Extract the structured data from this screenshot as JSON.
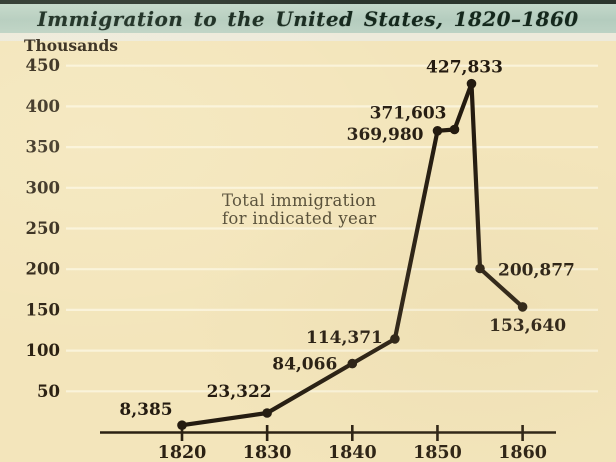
{
  "page": {
    "title": "Immigration to the United States, 1820–1860"
  },
  "chart_data": {
    "type": "line",
    "title": "Immigration to the United States, 1820–1860",
    "unit_label": "Thousands",
    "annotation_lines": [
      "Total immigration",
      "for indicated year"
    ],
    "xlabel": "",
    "ylabel": "Thousands",
    "x_ticks": [
      1820,
      1830,
      1840,
      1850,
      1860
    ],
    "y_ticks": [
      450,
      400,
      350,
      300,
      250,
      200,
      150,
      100,
      50
    ],
    "ylim": [
      0,
      450
    ],
    "xlim": [
      1810,
      1864
    ],
    "grid": true,
    "legend_position": "none",
    "series": [
      {
        "name": "Total immigration for indicated year",
        "points": [
          {
            "year": 1820,
            "value": 8385,
            "label": "8,385",
            "label_anchor": "middle",
            "label_dx": -36,
            "label_dy": -10
          },
          {
            "year": 1830,
            "value": 23322,
            "label": "23,322",
            "label_anchor": "middle",
            "label_dx": -28,
            "label_dy": -16
          },
          {
            "year": 1840,
            "value": 84066,
            "label": "84,066",
            "label_anchor": "end",
            "label_dx": -15,
            "label_dy": 6
          },
          {
            "year": 1845,
            "value": 114371,
            "label": "114,371",
            "label_anchor": "end",
            "label_dx": -12,
            "label_dy": 4
          },
          {
            "year": 1850,
            "value": 369980,
            "label": "369,980",
            "label_anchor": "end",
            "label_dx": -14,
            "label_dy": 9
          },
          {
            "year": 1852,
            "value": 371603,
            "label": "371,603",
            "label_anchor": "end",
            "label_dx": -8,
            "label_dy": -11
          },
          {
            "year": 1854,
            "value": 427833,
            "label": "427,833",
            "label_anchor": "middle",
            "label_dx": -7,
            "label_dy": -11
          },
          {
            "year": 1855,
            "value": 200877,
            "label": "200,877",
            "label_anchor": "start",
            "label_dx": 18,
            "label_dy": 7
          },
          {
            "year": 1860,
            "value": 153640,
            "label": "153,640",
            "label_anchor": "middle",
            "label_dx": 5,
            "label_dy": 24
          }
        ]
      }
    ],
    "colors": {
      "background": "#f3e5bb",
      "title_band": "#bcd2c4",
      "top_rule": "#2c362e",
      "title_text": "#14271c",
      "gridline": "#faf3da",
      "line": "#241b10",
      "point": "#241b10",
      "axis": "#2b2113",
      "tick_text": "#2b2113",
      "data_label_text": "#241b10",
      "annotation_text": "#4e4630"
    }
  }
}
